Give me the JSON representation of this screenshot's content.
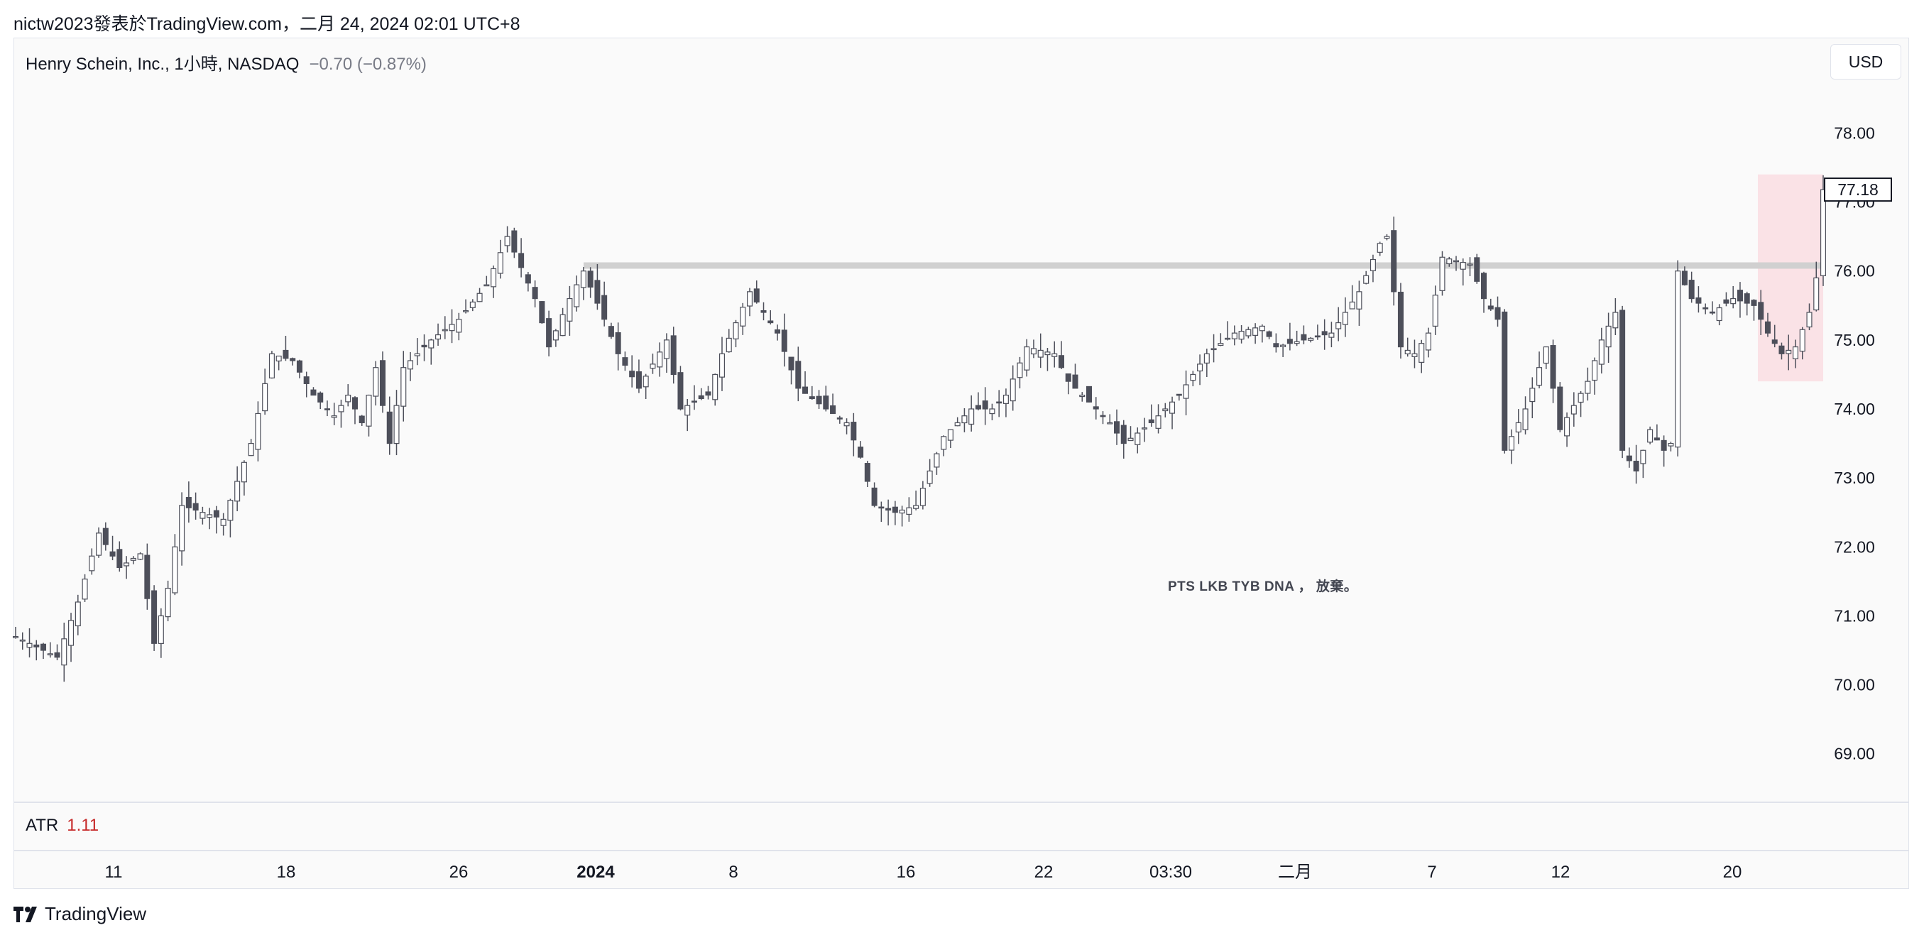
{
  "header": {
    "text": "nictw2023發表於TradingView.com，二月 24, 2024 02:01 UTC+8"
  },
  "legend": {
    "symbol": "Henry Schein, Inc., 1小時, NASDAQ",
    "change": "−0.70 (−0.87%)"
  },
  "currency_button": {
    "label": "USD"
  },
  "atr": {
    "label": "ATR",
    "value": "1.11"
  },
  "footer": {
    "brand": "TradingView"
  },
  "colors": {
    "candle": "#4d4f5a",
    "line": "#d0d0d0",
    "highlight": "#f9dde2",
    "atr_value": "#c62828",
    "background": "#fafafa"
  },
  "chart_data": {
    "type": "candlestick",
    "ylim": [
      68.4,
      78.9
    ],
    "y_ticks": [
      "78.00",
      "77.00",
      "76.00",
      "75.00",
      "74.00",
      "73.00",
      "72.00",
      "71.00",
      "70.00",
      "69.00"
    ],
    "x_ticks": [
      {
        "label": "11",
        "bold": false
      },
      {
        "label": "18",
        "bold": false
      },
      {
        "label": "26",
        "bold": false
      },
      {
        "label": "2024",
        "bold": true
      },
      {
        "label": "8",
        "bold": false
      },
      {
        "label": "16",
        "bold": false
      },
      {
        "label": "22",
        "bold": false
      },
      {
        "label": "03:30",
        "bold": false
      },
      {
        "label": "二月",
        "bold": false
      },
      {
        "label": "7",
        "bold": false
      },
      {
        "label": "12",
        "bold": false
      },
      {
        "label": "20",
        "bold": false
      }
    ],
    "last_price": "77.18",
    "horizontal_line": {
      "value": 76.08
    },
    "highlight_zone": {
      "price_top": 77.4,
      "price_bottom": 74.4
    },
    "annotation": "PTS LKB TYB DNA ， 放棄。",
    "price_path": [
      [
        0,
        70.7
      ],
      [
        6,
        70.4
      ],
      [
        9,
        71.2
      ],
      [
        12,
        72.2
      ],
      [
        15,
        71.7
      ],
      [
        18,
        71.9
      ],
      [
        20,
        70.6
      ],
      [
        22,
        71.4
      ],
      [
        24,
        72.6
      ],
      [
        30,
        72.4
      ],
      [
        34,
        73.5
      ],
      [
        37,
        74.8
      ],
      [
        40,
        74.7
      ],
      [
        43,
        74.2
      ],
      [
        46,
        73.9
      ],
      [
        48,
        74.2
      ],
      [
        50,
        73.8
      ],
      [
        52,
        74.6
      ],
      [
        54,
        73.5
      ],
      [
        56,
        74.6
      ],
      [
        60,
        75.0
      ],
      [
        64,
        75.3
      ],
      [
        68,
        75.8
      ],
      [
        71,
        76.5
      ],
      [
        75,
        75.6
      ],
      [
        77,
        74.9
      ],
      [
        80,
        75.6
      ],
      [
        82,
        76.0
      ],
      [
        85,
        75.3
      ],
      [
        87,
        74.8
      ],
      [
        90,
        74.3
      ],
      [
        94,
        75.0
      ],
      [
        96,
        74.0
      ],
      [
        100,
        74.2
      ],
      [
        102,
        74.8
      ],
      [
        106,
        75.7
      ],
      [
        110,
        75.1
      ],
      [
        113,
        74.3
      ],
      [
        117,
        74.0
      ],
      [
        120,
        73.8
      ],
      [
        122,
        73.3
      ],
      [
        124,
        72.6
      ],
      [
        127,
        72.5
      ],
      [
        130,
        72.6
      ],
      [
        134,
        73.6
      ],
      [
        138,
        74.0
      ],
      [
        141,
        74.0
      ],
      [
        143,
        74.2
      ],
      [
        146,
        74.9
      ],
      [
        150,
        74.8
      ],
      [
        152,
        74.4
      ],
      [
        155,
        74.1
      ],
      [
        158,
        73.8
      ],
      [
        160,
        73.5
      ],
      [
        164,
        73.8
      ],
      [
        168,
        74.2
      ],
      [
        172,
        74.8
      ],
      [
        176,
        75.1
      ],
      [
        180,
        75.2
      ],
      [
        182,
        74.9
      ],
      [
        186,
        75.0
      ],
      [
        190,
        75.1
      ],
      [
        194,
        75.7
      ],
      [
        197,
        76.4
      ],
      [
        198,
        76.5
      ],
      [
        200,
        74.9
      ],
      [
        202,
        74.8
      ],
      [
        204,
        75.1
      ],
      [
        206,
        76.2
      ],
      [
        210,
        76.1
      ],
      [
        212,
        75.6
      ],
      [
        214,
        75.3
      ],
      [
        215,
        73.4
      ],
      [
        218,
        74.0
      ],
      [
        221,
        74.9
      ],
      [
        223,
        73.7
      ],
      [
        227,
        74.4
      ],
      [
        229,
        75.0
      ],
      [
        231,
        75.4
      ],
      [
        232,
        73.4
      ],
      [
        234,
        73.1
      ],
      [
        236,
        73.7
      ],
      [
        238,
        73.4
      ],
      [
        239,
        73.5
      ],
      [
        240,
        76.0
      ],
      [
        242,
        75.6
      ],
      [
        245,
        75.4
      ],
      [
        248,
        75.6
      ],
      [
        251,
        75.5
      ],
      [
        253,
        75.1
      ],
      [
        255,
        74.8
      ],
      [
        257,
        74.9
      ],
      [
        259,
        75.4
      ],
      [
        260,
        75.9
      ],
      [
        261,
        77.18
      ]
    ],
    "x_count": 262
  }
}
